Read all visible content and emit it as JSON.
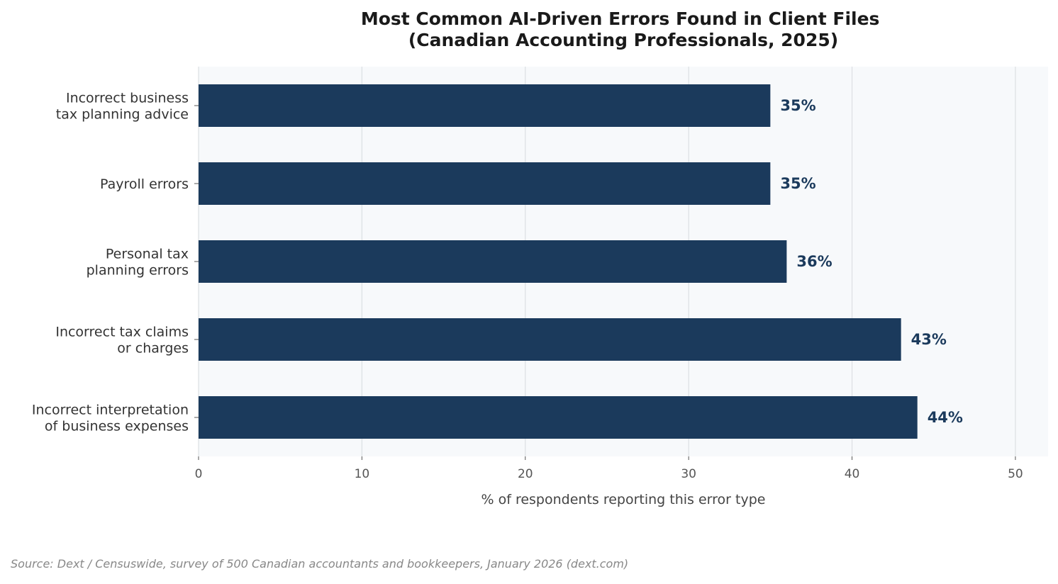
{
  "chart_data": {
    "type": "bar",
    "orientation": "horizontal",
    "title": [
      "Most Common AI-Driven Errors Found in Client Files",
      "(Canadian Accounting Professionals, 2025)"
    ],
    "xlabel": "% of respondents reporting this error type",
    "categories": [
      [
        "Incorrect business",
        "tax planning advice"
      ],
      [
        "Payroll errors"
      ],
      [
        "Personal tax",
        "planning errors"
      ],
      [
        "Incorrect tax claims",
        "or charges"
      ],
      [
        "Incorrect interpretation",
        "of business expenses"
      ]
    ],
    "values": [
      35,
      35,
      36,
      43,
      44
    ],
    "value_labels": [
      "35%",
      "35%",
      "36%",
      "43%",
      "44%"
    ],
    "xlim": [
      0,
      52
    ],
    "xticks": [
      0,
      10,
      20,
      30,
      40,
      50
    ],
    "grid": "vertical",
    "bar_color": "#1b3a5c",
    "plot_background": "#f7f9fb",
    "grid_color": "#dcdfe3",
    "source": "Source: Dext / Censuswide, survey of 500 Canadian accountants and bookkeepers, January 2026 (dext.com)"
  }
}
